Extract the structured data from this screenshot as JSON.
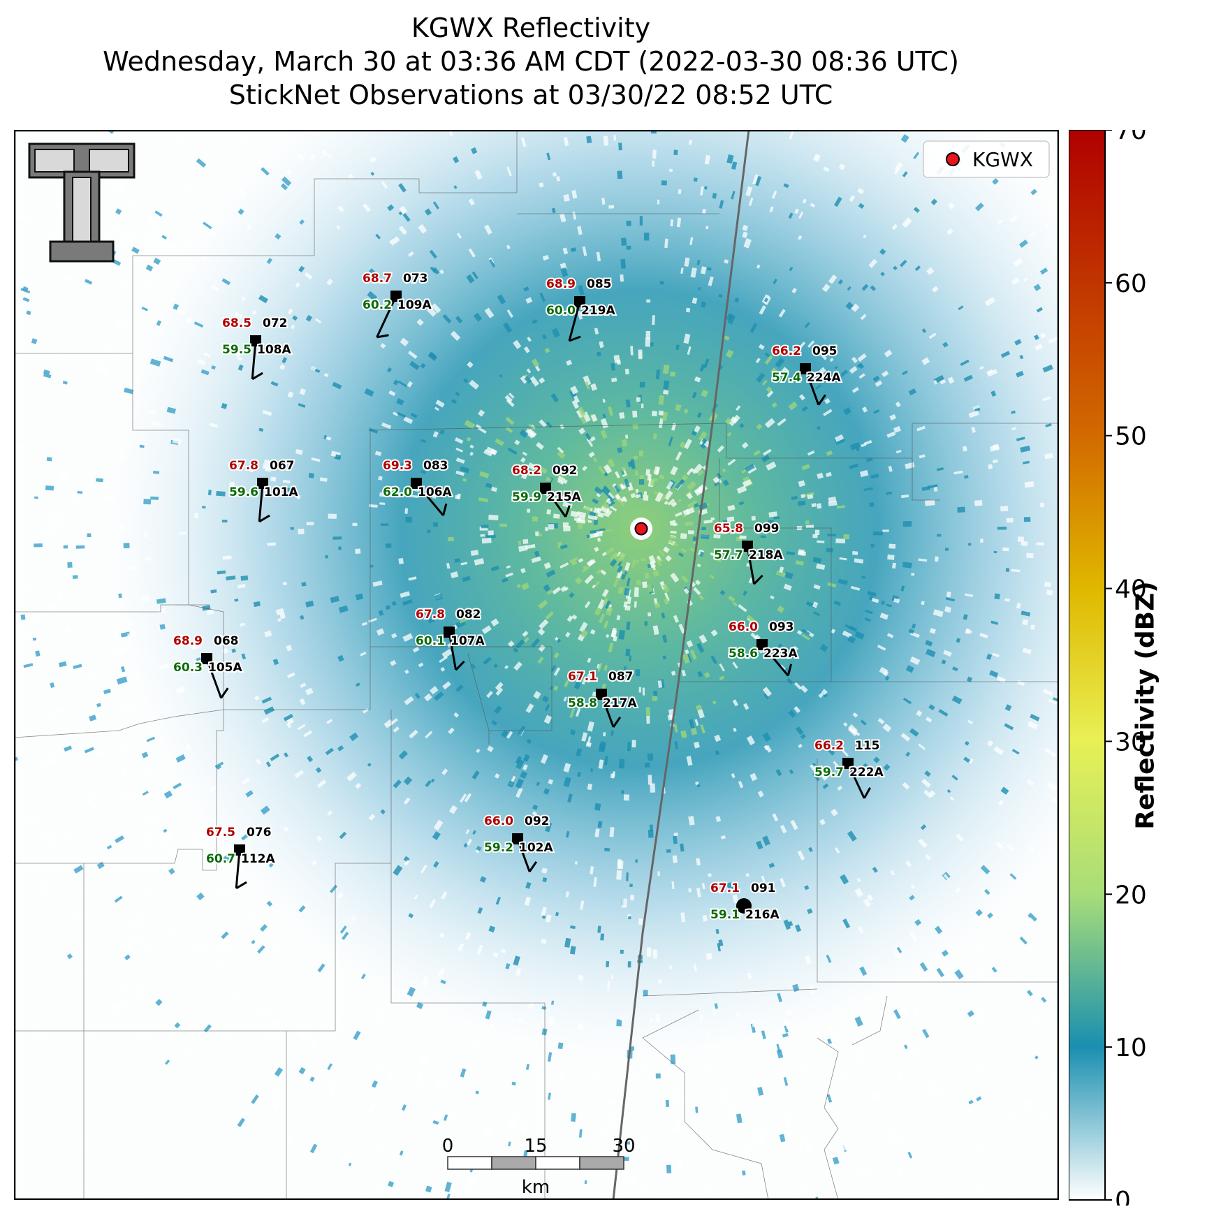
{
  "title_lines": [
    "KGWX Reflectivity",
    "Wednesday, March 30 at 03:36 AM CDT (2022-03-30 08:36 UTC)",
    "StickNet Observations at 03/30/22 08:52 UTC"
  ],
  "legend": {
    "label": "KGWX",
    "marker_color": "#e8141c"
  },
  "colorbar": {
    "label": "Reflectivity (dBZ)",
    "ticks": [
      "0",
      "10",
      "20",
      "30",
      "40",
      "50",
      "60",
      "70"
    ],
    "range": [
      0,
      70
    ],
    "colors": [
      "#ffffff",
      "#1a8fb0",
      "#a8dd78",
      "#e8f055",
      "#e0b800",
      "#d26a00",
      "#b80000"
    ]
  },
  "scale_bar": {
    "ticks": [
      "0",
      "15",
      "30"
    ],
    "unit": "km"
  },
  "logo": {
    "name": "texas-tech-double-t"
  },
  "stations": [
    {
      "id": "109A",
      "temp": "68.7",
      "dew": "60.2",
      "num": "073"
    },
    {
      "id": "219A",
      "temp": "68.9",
      "dew": "60.0",
      "num": "085"
    },
    {
      "id": "108A",
      "temp": "68.5",
      "dew": "59.5",
      "num": "072"
    },
    {
      "id": "224A",
      "temp": "66.2",
      "dew": "57.4",
      "num": "095"
    },
    {
      "id": "101A",
      "temp": "67.8",
      "dew": "59.6",
      "num": "067"
    },
    {
      "id": "106A",
      "temp": "69.3",
      "dew": "62.0",
      "num": "083"
    },
    {
      "id": "215A",
      "temp": "68.2",
      "dew": "59.9",
      "num": "092"
    },
    {
      "id": "218A",
      "temp": "65.8",
      "dew": "57.7",
      "num": "099"
    },
    {
      "id": "107A",
      "temp": "67.8",
      "dew": "60.1",
      "num": "082"
    },
    {
      "id": "223A",
      "temp": "66.0",
      "dew": "58.6",
      "num": "093"
    },
    {
      "id": "105A",
      "temp": "68.9",
      "dew": "60.3",
      "num": "068"
    },
    {
      "id": "217A",
      "temp": "67.1",
      "dew": "58.8",
      "num": "087"
    },
    {
      "id": "222A",
      "temp": "66.2",
      "dew": "59.7",
      "num": "115"
    },
    {
      "id": "112A",
      "temp": "67.5",
      "dew": "60.7",
      "num": "076"
    },
    {
      "id": "102A",
      "temp": "66.0",
      "dew": "59.2",
      "num": "092"
    },
    {
      "id": "216A",
      "temp": "67.1",
      "dew": "59.1",
      "num": "091",
      "calm": true
    }
  ]
}
